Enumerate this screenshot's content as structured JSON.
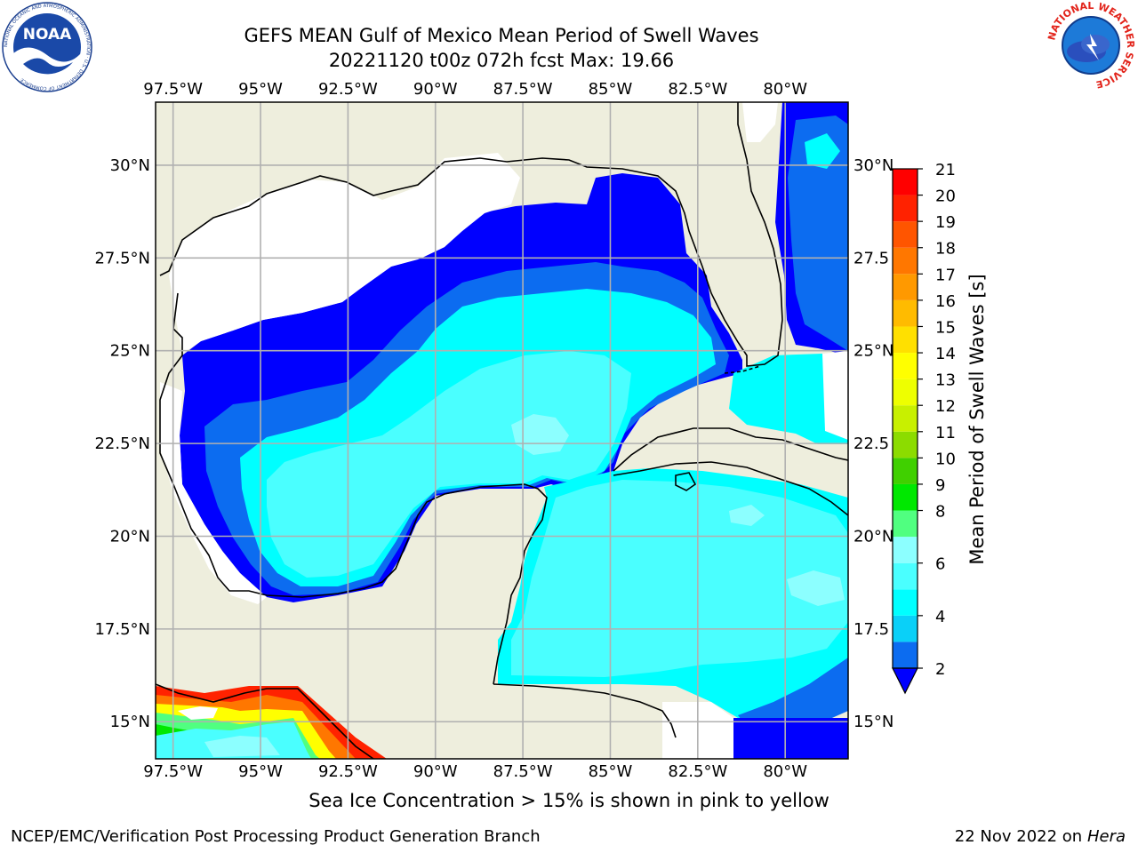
{
  "title_line1": "GEFS MEAN Gulf of Mexico Mean Period of Swell Waves",
  "title_line2": "20221120 t00z 072h fcst   Max: 19.66",
  "subtitle_bottom": "Sea Ice Concentration > 15% is shown in pink to yellow",
  "footer_left": "NCEP/EMC/Verification Post Processing Product Generation Branch",
  "footer_right_date": "22 Nov 2022 on",
  "footer_right_host": "Hera",
  "logo_left_text": "NOAA",
  "logo_left_ring": "NATIONAL OCEANIC AND ATMOSPHERIC ADMINISTRATION · U.S. DEPARTMENT OF COMMERCE",
  "logo_right_ring": "NATIONAL WEATHER SERVICE",
  "colors": {
    "land": "#eeeedd",
    "nodata": "#ffffff",
    "grid": "#b0b0b0",
    "coast": "#000000"
  },
  "chart_data": {
    "type": "heatmap",
    "variable": "Mean Period of Swell Waves",
    "colorbar_label": "Mean Period of Swell Waves [s]",
    "max_value": 19.66,
    "x_ticks": [
      "97.5°W",
      "95°W",
      "92.5°W",
      "90°W",
      "87.5°W",
      "85°W",
      "82.5°W",
      "80°W"
    ],
    "x_tick_values": [
      -97.5,
      -95,
      -92.5,
      -90,
      -87.5,
      -85,
      -82.5,
      -80
    ],
    "y_ticks": [
      "30°N",
      "27.5°N",
      "25°N",
      "22.5°N",
      "20°N",
      "17.5°N",
      "15°N"
    ],
    "y_tick_values": [
      30,
      27.5,
      25,
      22.5,
      20,
      17.5,
      15
    ],
    "y_ticks_right": [
      "30°N",
      "27.5",
      "25°N",
      "22.5",
      "20°N",
      "17.5",
      "15°N"
    ],
    "xlim": [
      -98,
      -78.2
    ],
    "ylim": [
      14,
      31.7
    ],
    "grid": true,
    "colorbar": {
      "levels": [
        2,
        3,
        4,
        5,
        6,
        7,
        8,
        9,
        10,
        11,
        12,
        13,
        14,
        15,
        16,
        17,
        18,
        19,
        20,
        21
      ],
      "tick_labels": [
        "2",
        "4",
        "6",
        "8",
        "9",
        "10",
        "11",
        "12",
        "13",
        "14",
        "15",
        "16",
        "17",
        "18",
        "19",
        "20",
        "21"
      ],
      "tick_values": [
        2,
        4,
        6,
        8,
        9,
        10,
        11,
        12,
        13,
        14,
        15,
        16,
        17,
        18,
        19,
        20,
        21
      ],
      "colors": [
        "#0c6cf0",
        "#0ad0f8",
        "#00ffff",
        "#4affff",
        "#8cffff",
        "#50ff80",
        "#00e800",
        "#40d000",
        "#8cdc00",
        "#c8f000",
        "#eeff00",
        "#ffff00",
        "#ffe000",
        "#ffbb00",
        "#ff9900",
        "#ff7700",
        "#ff5500",
        "#ff2200",
        "#ff0000"
      ],
      "extend": "min",
      "under_color": "#0000ff"
    }
  }
}
